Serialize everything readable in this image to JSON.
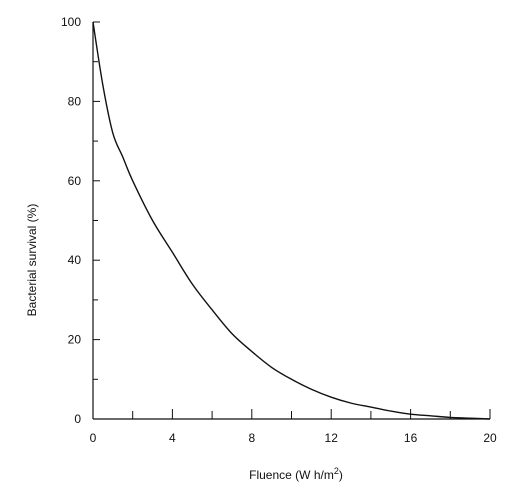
{
  "chart_data": {
    "type": "line",
    "xlabel": "Fluence (W h/m",
    "xlabel_sup": "2",
    "xlabel_tail": ")",
    "ylabel": "Bacterial survival (%)",
    "xlim": [
      0,
      20
    ],
    "ylim": [
      0,
      100
    ],
    "x_major_ticks": [
      0,
      4,
      8,
      12,
      16,
      20
    ],
    "x_minor_ticks": [
      2,
      6,
      10,
      14,
      18
    ],
    "y_major_ticks": [
      0,
      20,
      40,
      60,
      80,
      100
    ],
    "y_minor_ticks": [
      10,
      30,
      50,
      70,
      90
    ],
    "grid": false,
    "legend": "none",
    "series": [
      {
        "x": [
          0,
          0.5,
          1,
          1.5,
          2,
          3,
          4,
          5,
          6,
          7,
          8,
          9,
          10,
          11,
          12,
          13,
          14,
          15,
          16,
          17,
          18,
          19,
          20
        ],
        "y": [
          100,
          84,
          72,
          66,
          60,
          50,
          42,
          34,
          27.5,
          21.5,
          17,
          13,
          10,
          7.5,
          5.5,
          4,
          3,
          2,
          1.2,
          0.8,
          0.4,
          0.2,
          0
        ]
      }
    ]
  }
}
